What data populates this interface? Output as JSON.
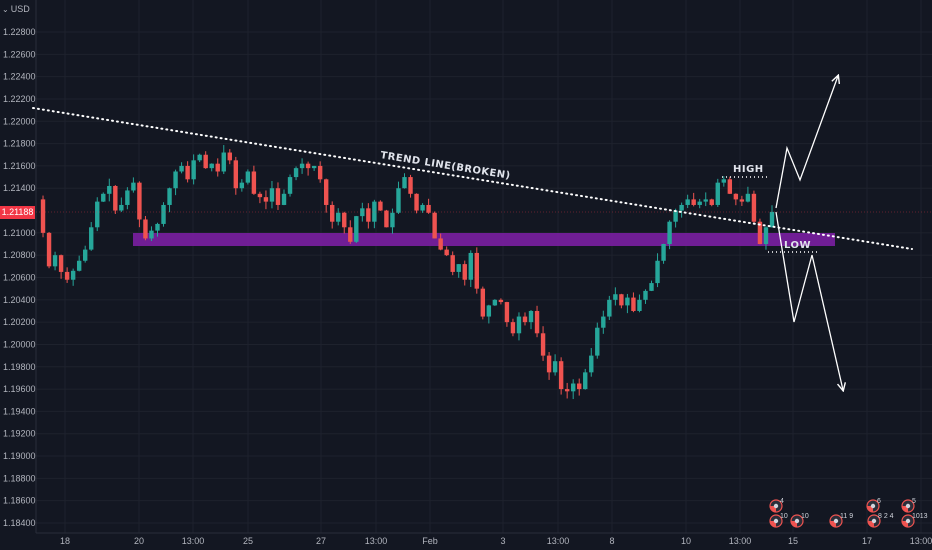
{
  "currency": {
    "label": "USD",
    "icon": "chevron-down-icon"
  },
  "current_price": "1.21188",
  "colors": {
    "background": "#131722",
    "up": "#26a69a",
    "down": "#ef5350",
    "zone": "#7b1fa2",
    "trendline": "#ffffff",
    "price_tag": "#f23645"
  },
  "annotations": {
    "trendline_label": "TREND LINE(BROKEN)",
    "high_label": "HIGH",
    "low_label": "LOW"
  },
  "chart_data": {
    "type": "candlestick",
    "symbol_currency": "USD",
    "y_axis": {
      "ticks": [
        "1.22800",
        "1.22600",
        "1.22400",
        "1.22200",
        "1.22000",
        "1.21800",
        "1.21600",
        "1.21400",
        "1.21000",
        "1.20800",
        "1.20600",
        "1.20400",
        "1.20200",
        "1.20000",
        "1.19800",
        "1.19600",
        "1.19400",
        "1.19200",
        "1.19000",
        "1.18800",
        "1.18600",
        "1.18400"
      ],
      "range": [
        1.1825,
        1.23
      ]
    },
    "x_axis": {
      "ticks": [
        "18",
        "20",
        "13:00",
        "25",
        "27",
        "13:00",
        "Feb",
        "3",
        "13:00",
        "8",
        "10",
        "13:00",
        "15",
        "17",
        "13:00"
      ]
    },
    "support_zone": [
      1.2088,
      1.21
    ],
    "trend_line": {
      "start": 1.2212,
      "end": 1.2087,
      "state": "broken"
    },
    "high_level": 1.2151,
    "low_level": 1.2084,
    "last_price": 1.21188,
    "projections": [
      "up to 1.2240",
      "down to 1.1960"
    ],
    "close_path": [
      1.213,
      1.21,
      1.207,
      1.208,
      1.2065,
      1.2058,
      1.2066,
      1.2075,
      1.2085,
      1.2105,
      1.2128,
      1.2135,
      1.2142,
      1.212,
      1.2125,
      1.2138,
      1.2145,
      1.2112,
      1.2095,
      1.2102,
      1.2108,
      1.2125,
      1.214,
      1.2155,
      1.216,
      1.2148,
      1.2165,
      1.217,
      1.2158,
      1.2162,
      1.2155,
      1.2172,
      1.2165,
      1.214,
      1.2145,
      1.2155,
      1.2135,
      1.2132,
      1.2128,
      1.214,
      1.2125,
      1.2135,
      1.215,
      1.2158,
      1.2162,
      1.2158,
      1.216,
      1.2148,
      1.2125,
      1.211,
      1.2118,
      1.2105,
      1.2092,
      1.2115,
      1.2122,
      1.211,
      1.2128,
      1.212,
      1.2105,
      1.2118,
      1.214,
      1.215,
      1.2135,
      1.212,
      1.2125,
      1.2118,
      1.2095,
      1.2085,
      1.208,
      1.2065,
      1.2072,
      1.2058,
      1.2082,
      1.205,
      1.2025,
      1.2035,
      1.204,
      1.2038,
      1.202,
      1.201,
      1.2025,
      1.202,
      1.203,
      1.201,
      1.199,
      1.1975,
      1.1985,
      1.196,
      1.1958,
      1.1965,
      1.196,
      1.1975,
      1.199,
      1.2015,
      1.2025,
      1.204,
      1.2045,
      1.2035,
      1.2042,
      1.203,
      1.204,
      1.2048,
      1.2055,
      1.2075,
      1.209,
      1.211,
      1.212,
      1.2125,
      1.213,
      1.2125,
      1.2128,
      1.213,
      1.2125,
      1.2145,
      1.2148,
      1.2135,
      1.213,
      1.2128,
      1.2135,
      1.211,
      1.209,
      1.2105,
      1.21188
    ]
  },
  "indicators": {
    "row1": [
      "4",
      "6",
      "5"
    ],
    "row2": [
      "10",
      "10",
      "11 9",
      "8 2 4",
      "1013"
    ]
  }
}
